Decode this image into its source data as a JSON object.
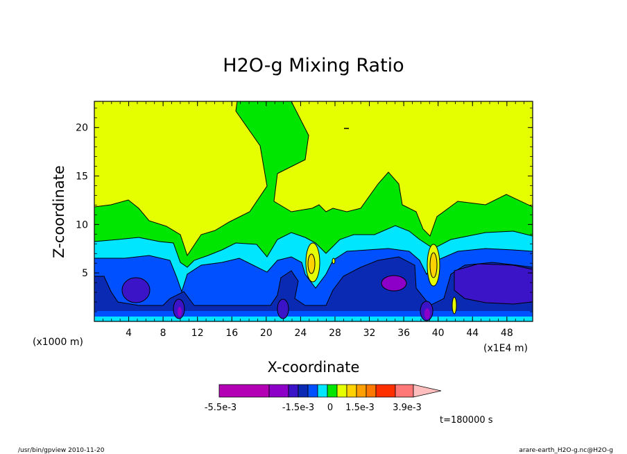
{
  "chart_data": {
    "type": "heatmap",
    "title": "H2O-g Mixing Ratio",
    "xlabel": "X-coordinate",
    "ylabel": "Z-coordinate",
    "x_unit_left": "(x1000 m)",
    "x_unit_right": "(x1E4 m)",
    "x_ticks": [
      "4",
      "8",
      "12",
      "16",
      "20",
      "24",
      "28",
      "32",
      "36",
      "40",
      "44",
      "48"
    ],
    "y_ticks": [
      "5",
      "10",
      "15",
      "20"
    ],
    "xlim": [
      0,
      51
    ],
    "ylim": [
      0,
      22.7
    ],
    "colorbar": {
      "colors": [
        "#b400b4",
        "#8c00c8",
        "#3c14c8",
        "#0a2ab4",
        "#0050ff",
        "#00e6ff",
        "#00e600",
        "#e6ff00",
        "#ffd200",
        "#ffa000",
        "#ff7800",
        "#ff3000",
        "#ff7878",
        "#ffbebe"
      ],
      "labels": [
        "-5.5e-3",
        "-1.5e-3",
        "0",
        "1.5e-3",
        "3.9e-3"
      ]
    },
    "time_label": "t=180000 s"
  },
  "footer": {
    "left": "/usr/bin/gpview   2010-11-20",
    "right": "arare-earth_H2O-g.nc@H2O-g"
  }
}
